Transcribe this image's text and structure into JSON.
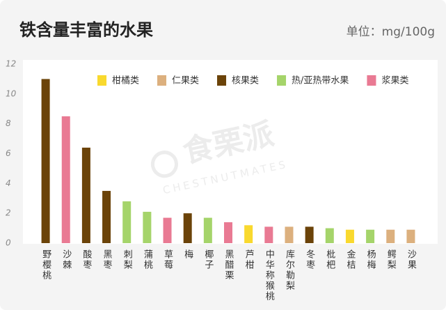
{
  "chart_data": {
    "type": "bar",
    "title": "铁含量丰富的水果",
    "unit": "单位：mg/100g",
    "watermark": [
      "食栗派",
      "CHESTNUTMATES"
    ],
    "categories": [
      "野樱桃",
      "沙棘",
      "酸枣",
      "黑枣",
      "刺梨",
      "蒲桃",
      "草莓",
      "梅",
      "椰子",
      "黑醋栗",
      "芦柑",
      "中华称猴桃",
      "库尔勒梨",
      "冬枣",
      "枇杷",
      "金桔",
      "杨梅",
      "鳄梨",
      "沙果"
    ],
    "values": [
      11.0,
      8.5,
      6.4,
      3.5,
      2.8,
      2.1,
      1.7,
      2.0,
      1.7,
      1.4,
      1.2,
      1.1,
      1.1,
      1.1,
      1.0,
      0.9,
      0.9,
      0.9,
      0.9
    ],
    "colors": [
      "#6b4309",
      "#e97a93",
      "#6b4309",
      "#6b4309",
      "#a5d46a",
      "#a5d46a",
      "#e97a93",
      "#6b4309",
      "#a5d46a",
      "#e97a93",
      "#f9d92e",
      "#e97a93",
      "#dcb07e",
      "#6b4309",
      "#a5d46a",
      "#f9d92e",
      "#a5d46a",
      "#dcb07e",
      "#dcb07e"
    ],
    "legend": [
      {
        "name": "柑橘类",
        "color": "#f9d92e"
      },
      {
        "name": "仁果类",
        "color": "#dcb07e"
      },
      {
        "name": "核果类",
        "color": "#6b4309"
      },
      {
        "name": "热/亚热带水果",
        "color": "#a5d46a"
      },
      {
        "name": "浆果类",
        "color": "#e97a93"
      }
    ],
    "ylim": [
      0,
      12
    ],
    "yticks": [
      0,
      2,
      4,
      6,
      8,
      10,
      12
    ]
  }
}
